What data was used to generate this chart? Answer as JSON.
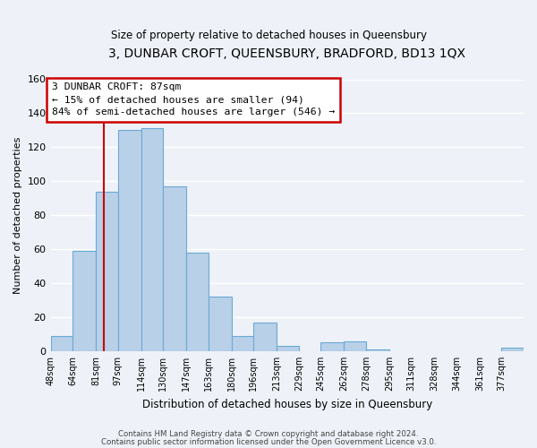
{
  "title": "3, DUNBAR CROFT, QUEENSBURY, BRADFORD, BD13 1QX",
  "subtitle": "Size of property relative to detached houses in Queensbury",
  "xlabel": "Distribution of detached houses by size in Queensbury",
  "ylabel": "Number of detached properties",
  "bar_color": "#b8d0e8",
  "bar_edge_color": "#6aaad4",
  "vline_color": "#cc0000",
  "vline_x": 87,
  "categories": [
    "48sqm",
    "64sqm",
    "81sqm",
    "97sqm",
    "114sqm",
    "130sqm",
    "147sqm",
    "163sqm",
    "180sqm",
    "196sqm",
    "213sqm",
    "229sqm",
    "245sqm",
    "262sqm",
    "278sqm",
    "295sqm",
    "311sqm",
    "328sqm",
    "344sqm",
    "361sqm",
    "377sqm"
  ],
  "bin_edges": [
    48,
    64,
    81,
    97,
    114,
    130,
    147,
    163,
    180,
    196,
    213,
    229,
    245,
    262,
    278,
    295,
    311,
    328,
    344,
    361,
    377,
    393
  ],
  "values": [
    9,
    59,
    94,
    130,
    131,
    97,
    58,
    32,
    9,
    17,
    3,
    0,
    5,
    6,
    1,
    0,
    0,
    0,
    0,
    0,
    2
  ],
  "ylim": [
    0,
    160
  ],
  "yticks": [
    0,
    20,
    40,
    60,
    80,
    100,
    120,
    140,
    160
  ],
  "annotation_title": "3 DUNBAR CROFT: 87sqm",
  "annotation_line1": "← 15% of detached houses are smaller (94)",
  "annotation_line2": "84% of semi-detached houses are larger (546) →",
  "annotation_box_color": "#ffffff",
  "annotation_box_edge": "#cc0000",
  "footer1": "Contains HM Land Registry data © Crown copyright and database right 2024.",
  "footer2": "Contains public sector information licensed under the Open Government Licence v3.0.",
  "bg_color": "#eef2f8",
  "grid_color": "#ffffff"
}
